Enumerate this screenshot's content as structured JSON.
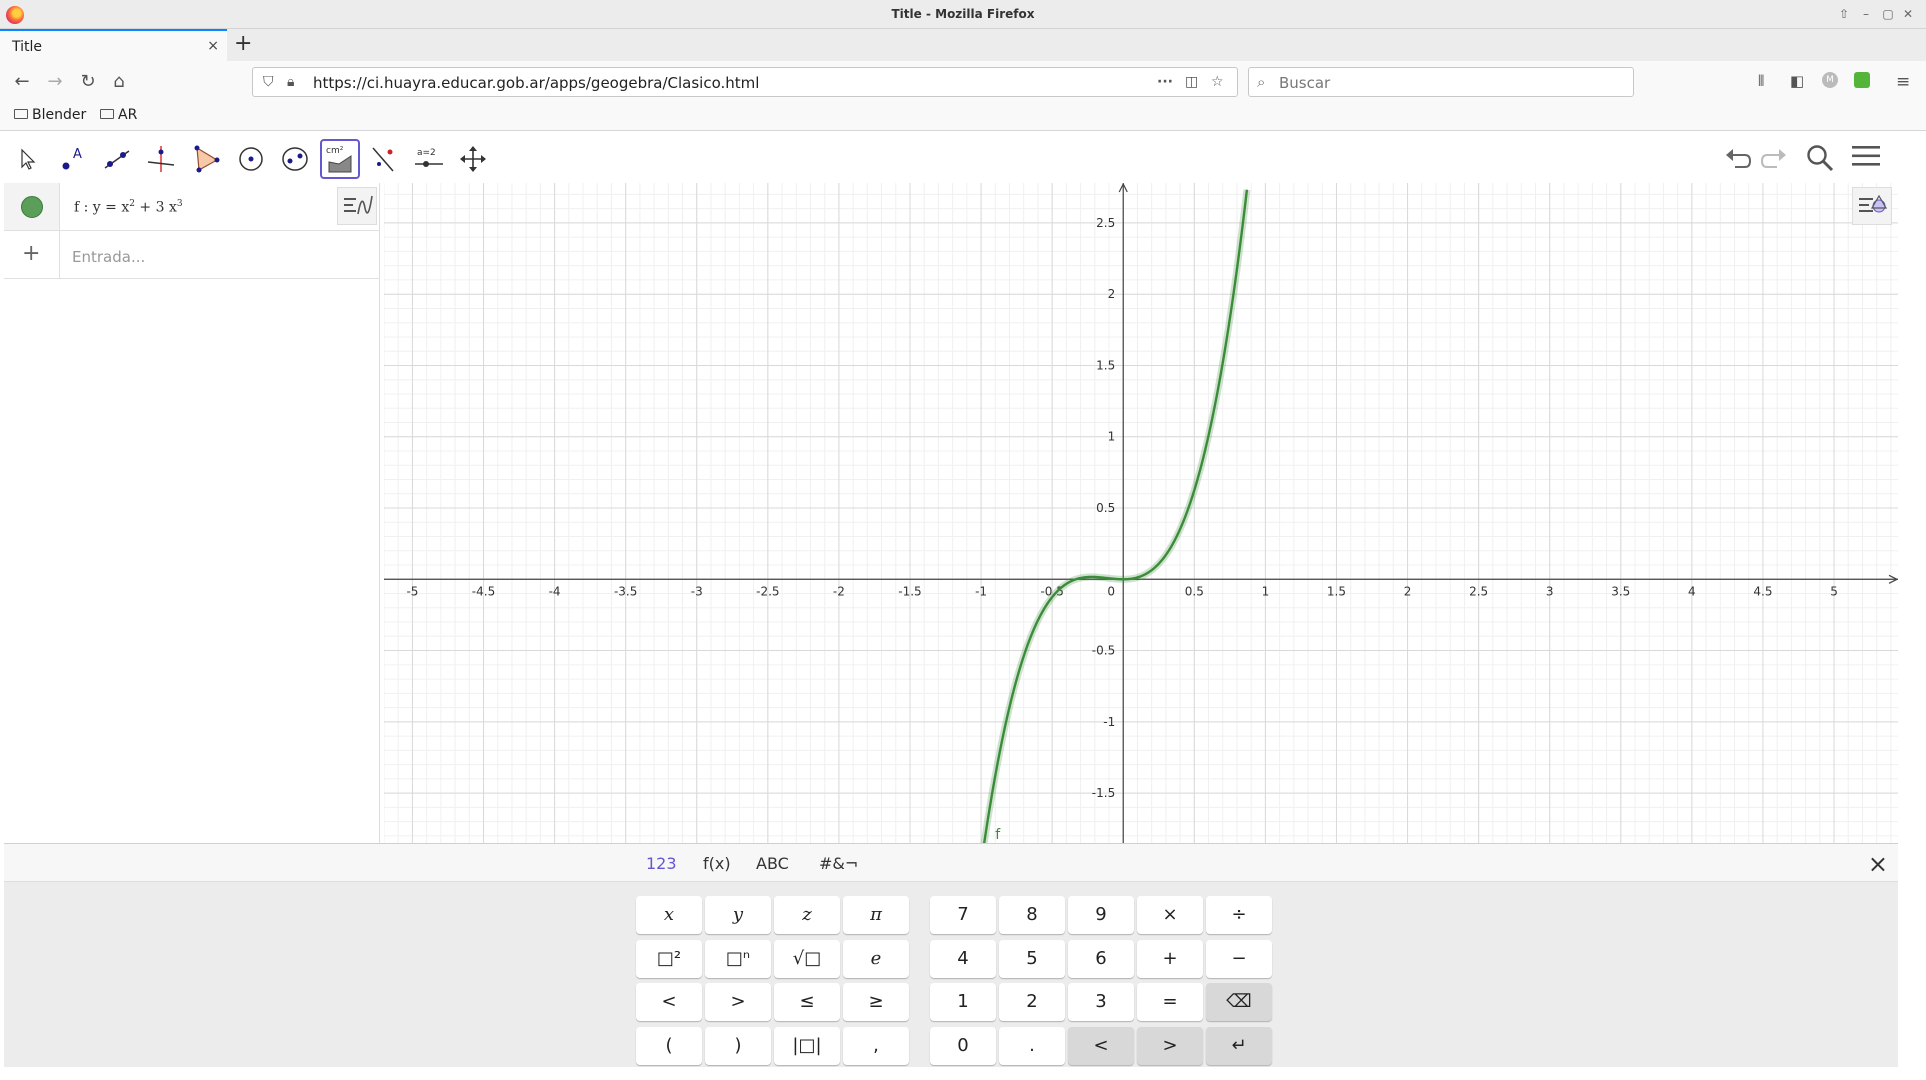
{
  "window": {
    "title": "Title - Mozilla Firefox"
  },
  "tab": {
    "label": "Title",
    "close": "×"
  },
  "newtab": "+",
  "nav": {
    "url": "https://ci.huayra.educar.gob.ar/apps/geogebra/Clasico.html",
    "search_placeholder": "Buscar"
  },
  "bookmarks": [
    {
      "label": "Blender"
    },
    {
      "label": "AR"
    }
  ],
  "toolbar": {
    "tools": [
      "move-tool",
      "point-tool",
      "line-tool",
      "perpendicular-tool",
      "polygon-tool",
      "circle-tool",
      "ellipse-tool",
      "area-tool",
      "reflect-tool",
      "slider-tool",
      "move-view-tool"
    ],
    "active_tool": "area-tool",
    "area_label": "cm²",
    "slider_label": "a=2"
  },
  "algebra": {
    "formula_prefix": "f : y = x",
    "formula_exp1": "2",
    "formula_mid": " + 3 x",
    "formula_exp2": "3",
    "input_placeholder": "Entrada...",
    "plus": "+"
  },
  "graphics": {
    "function_label": "f",
    "curve_color": "#3b8c3a"
  },
  "chart_data": {
    "type": "line",
    "title": "",
    "xlabel": "",
    "ylabel": "",
    "xlim": [
      -5.2,
      5.45
    ],
    "ylim": [
      -1.85,
      2.78
    ],
    "x_ticks": [
      "-5",
      "-4.5",
      "-4",
      "-3.5",
      "-3",
      "-2.5",
      "-2",
      "-1.5",
      "-1",
      "-0.5",
      "0",
      "0.5",
      "1",
      "1.5",
      "2",
      "2.5",
      "3",
      "3.5",
      "4",
      "4.5",
      "5"
    ],
    "y_ticks": [
      "-1.5",
      "-1",
      "-0.5",
      "0.5",
      "1",
      "1.5",
      "2",
      "2.5"
    ],
    "grid": true,
    "series": [
      {
        "name": "f",
        "expression": "y = x^2 + 3x^3",
        "x": [
          -0.98,
          -0.8,
          -0.6,
          -0.4,
          -0.2,
          0,
          0.2,
          0.4,
          0.6,
          0.8,
          0.87
        ],
        "y": [
          -1.86,
          -0.896,
          -0.288,
          -0.032,
          0.016,
          0,
          0.064,
          0.352,
          1.008,
          2.176,
          2.73
        ]
      }
    ]
  },
  "keyboard": {
    "tabs": [
      "123",
      "f(x)",
      "ABC",
      "#&¬"
    ],
    "close": "×",
    "left_keys": [
      [
        "x",
        "y",
        "z",
        "π"
      ],
      [
        "□²",
        "□ⁿ",
        "√□",
        "e"
      ],
      [
        "<",
        ">",
        "≤",
        "≥"
      ],
      [
        "(",
        ")",
        "|□|",
        ","
      ]
    ],
    "right_keys": [
      [
        "7",
        "8",
        "9",
        "×",
        "÷"
      ],
      [
        "4",
        "5",
        "6",
        "+",
        "−"
      ],
      [
        "1",
        "2",
        "3",
        "=",
        "⌫"
      ],
      [
        "0",
        ".",
        "<",
        ">",
        "↵"
      ]
    ]
  }
}
